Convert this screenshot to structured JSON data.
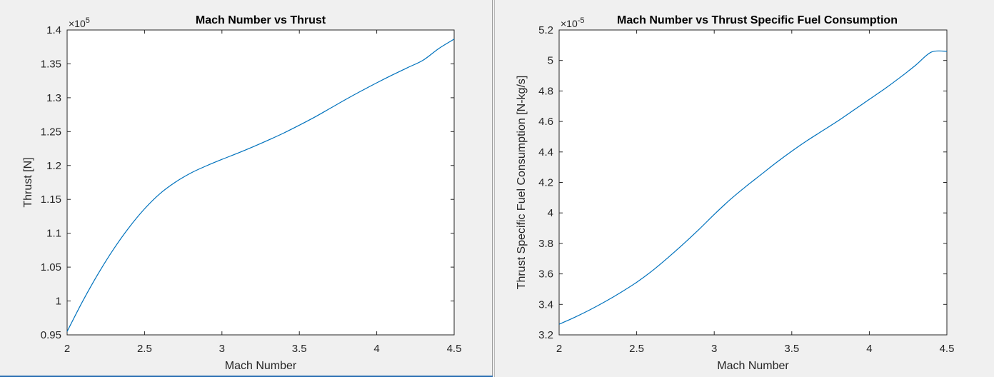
{
  "colors": {
    "series": "#0072bd",
    "axis": "#262626",
    "figure_bg": "#f0f0f0",
    "plot_bg": "#ffffff"
  },
  "chart_data": [
    {
      "type": "line",
      "title": "Mach Number vs Thrust",
      "xlabel": "Mach Number",
      "ylabel": "Thrust [N]",
      "exponent": {
        "base": "×10",
        "power": "5"
      },
      "xlim": [
        2,
        4.5
      ],
      "ylim": [
        0.95,
        1.4
      ],
      "x_ticks": [
        2,
        2.5,
        3,
        3.5,
        4,
        4.5
      ],
      "x_tick_labels": [
        "2",
        "2.5",
        "3",
        "3.5",
        "4",
        "4.5"
      ],
      "y_ticks": [
        0.95,
        1,
        1.05,
        1.1,
        1.15,
        1.2,
        1.25,
        1.3,
        1.35,
        1.4
      ],
      "y_tick_labels": [
        "0.95",
        "1",
        "1.05",
        "1.1",
        "1.15",
        "1.2",
        "1.25",
        "1.3",
        "1.35",
        "1.4"
      ],
      "grid": false,
      "series": [
        {
          "x": [
            2.0,
            2.1,
            2.2,
            2.3,
            2.4,
            2.5,
            2.6,
            2.7,
            2.8,
            2.9,
            3.0,
            3.1,
            3.2,
            3.3,
            3.4,
            3.5,
            3.6,
            3.7,
            3.8,
            3.9,
            4.0,
            4.1,
            4.2,
            4.3,
            4.4,
            4.5
          ],
          "y": [
            0.955,
            0.9995,
            1.04,
            1.0765,
            1.1085,
            1.136,
            1.1585,
            1.1755,
            1.189,
            1.1995,
            1.209,
            1.218,
            1.2275,
            1.2375,
            1.248,
            1.2595,
            1.2715,
            1.2845,
            1.2975,
            1.31,
            1.322,
            1.3335,
            1.3445,
            1.3555,
            1.3725,
            1.3865
          ]
        }
      ]
    },
    {
      "type": "line",
      "title": "Mach Number vs Thrust Specific Fuel Consumption",
      "xlabel": "Mach Number",
      "ylabel": "Thrust Specific Fuel Consumption [N-kg/s]",
      "exponent": {
        "base": "×10",
        "power": "-5"
      },
      "xlim": [
        2,
        4.5
      ],
      "ylim": [
        3.2,
        5.2
      ],
      "x_ticks": [
        2,
        2.5,
        3,
        3.5,
        4,
        4.5
      ],
      "x_tick_labels": [
        "2",
        "2.5",
        "3",
        "3.5",
        "4",
        "4.5"
      ],
      "y_ticks": [
        3.2,
        3.4,
        3.6,
        3.8,
        4,
        4.2,
        4.4,
        4.6,
        4.8,
        5,
        5.2
      ],
      "y_tick_labels": [
        "3.2",
        "3.4",
        "3.6",
        "3.8",
        "4",
        "4.2",
        "4.4",
        "4.6",
        "4.8",
        "5",
        "5.2"
      ],
      "grid": false,
      "series": [
        {
          "x": [
            2.0,
            2.1,
            2.2,
            2.3,
            2.4,
            2.5,
            2.6,
            2.7,
            2.8,
            2.9,
            3.0,
            3.1,
            3.2,
            3.3,
            3.4,
            3.5,
            3.6,
            3.7,
            3.8,
            3.9,
            4.0,
            4.1,
            4.2,
            4.3,
            4.4,
            4.5
          ],
          "y": [
            3.27,
            3.315,
            3.365,
            3.42,
            3.48,
            3.545,
            3.62,
            3.705,
            3.795,
            3.89,
            3.99,
            4.085,
            4.17,
            4.25,
            4.33,
            4.405,
            4.475,
            4.54,
            4.605,
            4.675,
            4.745,
            4.815,
            4.89,
            4.97,
            5.055,
            5.06
          ]
        }
      ]
    }
  ]
}
